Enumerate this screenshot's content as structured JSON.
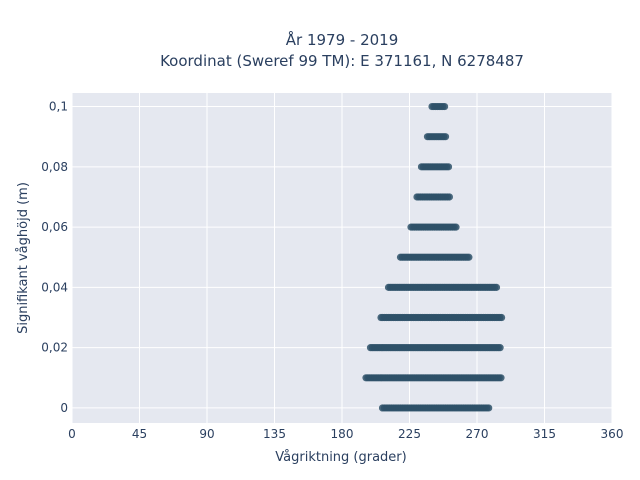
{
  "chart_data": {
    "type": "scatter",
    "title": "År 1979 - 2019",
    "subtitle": "Koordinat (Sweref 99 TM): E 371161, N 6278487",
    "xlabel": "Vågriktning (grader)",
    "ylabel": "Signifikant våghöjd (m)",
    "xlim": [
      0,
      360
    ],
    "ylim": [
      -0.005,
      0.1045
    ],
    "xticks": [
      0,
      45,
      90,
      135,
      180,
      225,
      270,
      315,
      360
    ],
    "xtick_labels": [
      "0",
      "45",
      "90",
      "135",
      "180",
      "225",
      "270",
      "315",
      "360"
    ],
    "yticks": [
      0,
      0.02,
      0.04,
      0.06,
      0.08,
      0.1
    ],
    "ytick_labels": [
      "0",
      "0,02",
      "0,04",
      "0,06",
      "0,08",
      "0,1"
    ],
    "grid": true,
    "marker_color": "#2e5168",
    "plot_bg": "#e5e8f0",
    "bands": [
      {
        "y": 0.0,
        "x_min": 207,
        "x_max": 278
      },
      {
        "y": 0.01,
        "x_min": 196,
        "x_max": 286
      },
      {
        "y": 0.02,
        "x_min": 199,
        "x_max": 286
      },
      {
        "y": 0.03,
        "x_min": 206,
        "x_max": 287
      },
      {
        "y": 0.04,
        "x_min": 211,
        "x_max": 283
      },
      {
        "y": 0.05,
        "x_min": 219,
        "x_max": 265
      },
      {
        "y": 0.06,
        "x_min": 226,
        "x_max": 257
      },
      {
        "y": 0.07,
        "x_min": 230,
        "x_max": 252
      },
      {
        "y": 0.08,
        "x_min": 233,
        "x_max": 251
      },
      {
        "y": 0.09,
        "x_min": 237,
        "x_max": 250
      },
      {
        "y": 0.1,
        "x_min": 240,
        "x_max": 249
      }
    ]
  }
}
